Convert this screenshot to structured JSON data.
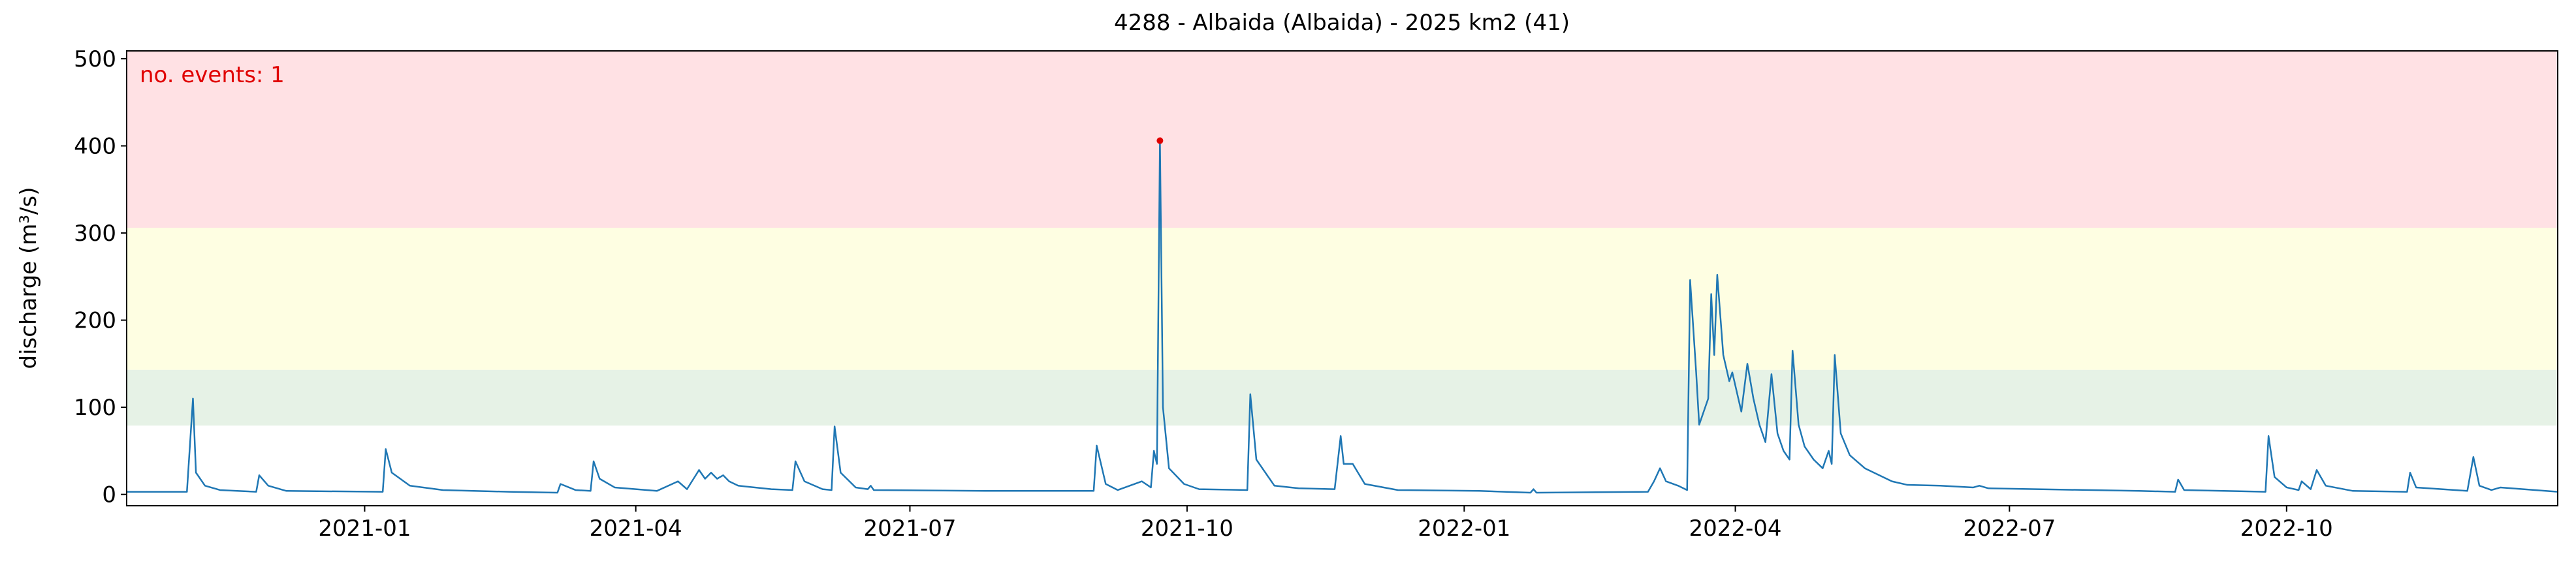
{
  "chart_data": {
    "type": "line",
    "title": "4288 - Albaida (Albaida) - 2025 km2 (41)",
    "y_label": "discharge (m³/s)",
    "annotation": "no. events: 1",
    "annotation_color": "#e00000",
    "xlim": [
      "2020-10-14",
      "2022-12-30"
    ],
    "ylim": [
      -13,
      509
    ],
    "yticks": [
      0,
      100,
      200,
      300,
      400,
      500
    ],
    "xticks": [
      "2021-01",
      "2021-04",
      "2021-07",
      "2021-10",
      "2022-01",
      "2022-04",
      "2022-07",
      "2022-10"
    ],
    "bands": [
      {
        "from": 79,
        "to": 143,
        "color": "#e6f2e6"
      },
      {
        "from": 143,
        "to": 306,
        "color": "#fefee2"
      },
      {
        "from": 306,
        "to": 509,
        "color": "#ffe1e4"
      }
    ],
    "series": [
      {
        "color": "#1f77b4",
        "x": [
          "2020-10-14",
          "2020-11-03",
          "2020-11-05",
          "2020-11-06",
          "2020-11-09",
          "2020-11-14",
          "2020-11-26",
          "2020-11-27",
          "2020-11-30",
          "2020-12-06",
          "2021-01-07",
          "2021-01-08",
          "2021-01-10",
          "2021-01-16",
          "2021-01-27",
          "2021-02-18",
          "2021-03-06",
          "2021-03-07",
          "2021-03-12",
          "2021-03-17",
          "2021-03-18",
          "2021-03-20",
          "2021-03-25",
          "2021-04-08",
          "2021-04-15",
          "2021-04-18",
          "2021-04-22",
          "2021-04-24",
          "2021-04-26",
          "2021-04-28",
          "2021-04-30",
          "2021-05-02",
          "2021-05-05",
          "2021-05-16",
          "2021-05-23",
          "2021-05-24",
          "2021-05-27",
          "2021-06-02",
          "2021-06-05",
          "2021-06-06",
          "2021-06-08",
          "2021-06-13",
          "2021-06-17",
          "2021-06-18",
          "2021-06-19",
          "2021-07-26",
          "2021-08-31",
          "2021-09-01",
          "2021-09-04",
          "2021-09-08",
          "2021-09-16",
          "2021-09-19",
          "2021-09-20",
          "2021-09-21",
          "2021-09-22",
          "2021-09-23",
          "2021-09-25",
          "2021-09-30",
          "2021-10-05",
          "2021-10-21",
          "2021-10-22",
          "2021-10-24",
          "2021-10-30",
          "2021-11-07",
          "2021-11-19",
          "2021-11-21",
          "2021-11-22",
          "2021-11-25",
          "2021-11-29",
          "2021-12-10",
          "2022-01-06",
          "2022-01-23",
          "2022-01-24",
          "2022-01-25",
          "2022-03-03",
          "2022-03-05",
          "2022-03-07",
          "2022-03-09",
          "2022-03-13",
          "2022-03-16",
          "2022-03-17",
          "2022-03-19",
          "2022-03-20",
          "2022-03-23",
          "2022-03-24",
          "2022-03-25",
          "2022-03-26",
          "2022-03-28",
          "2022-03-30",
          "2022-03-31",
          "2022-04-02",
          "2022-04-03",
          "2022-04-05",
          "2022-04-07",
          "2022-04-09",
          "2022-04-11",
          "2022-04-13",
          "2022-04-15",
          "2022-04-17",
          "2022-04-19",
          "2022-04-20",
          "2022-04-22",
          "2022-04-24",
          "2022-04-27",
          "2022-04-30",
          "2022-05-02",
          "2022-05-03",
          "2022-05-04",
          "2022-05-06",
          "2022-05-09",
          "2022-05-14",
          "2022-05-23",
          "2022-05-28",
          "2022-06-08",
          "2022-06-19",
          "2022-06-21",
          "2022-06-24",
          "2022-08-13",
          "2022-08-25",
          "2022-08-26",
          "2022-08-28",
          "2022-09-24",
          "2022-09-25",
          "2022-09-27",
          "2022-10-01",
          "2022-10-05",
          "2022-10-06",
          "2022-10-09",
          "2022-10-11",
          "2022-10-14",
          "2022-10-23",
          "2022-11-10",
          "2022-11-11",
          "2022-11-13",
          "2022-11-30",
          "2022-12-02",
          "2022-12-04",
          "2022-12-08",
          "2022-12-11",
          "2022-12-30"
        ],
        "values": [
          3,
          3,
          110,
          25,
          10,
          5,
          3,
          22,
          10,
          4,
          3,
          52,
          25,
          10,
          5,
          3,
          2,
          12,
          5,
          4,
          38,
          18,
          8,
          4,
          15,
          6,
          28,
          18,
          25,
          18,
          22,
          15,
          10,
          6,
          5,
          38,
          15,
          6,
          5,
          78,
          25,
          8,
          6,
          10,
          5,
          4,
          4,
          56,
          12,
          5,
          15,
          8,
          50,
          35,
          406,
          100,
          30,
          12,
          6,
          5,
          115,
          40,
          10,
          7,
          6,
          67,
          35,
          35,
          12,
          5,
          4,
          2,
          6,
          2,
          3,
          15,
          30,
          15,
          10,
          5,
          246,
          140,
          80,
          110,
          230,
          160,
          252,
          160,
          130,
          140,
          110,
          95,
          150,
          110,
          80,
          60,
          138,
          70,
          50,
          40,
          165,
          80,
          55,
          40,
          30,
          50,
          35,
          160,
          70,
          45,
          30,
          15,
          11,
          10,
          8,
          10,
          7,
          4,
          3,
          17,
          5,
          3,
          67,
          20,
          8,
          5,
          15,
          6,
          28,
          10,
          4,
          3,
          25,
          8,
          4,
          43,
          10,
          5,
          8,
          3
        ]
      }
    ],
    "events": {
      "x": [
        "2021-09-22"
      ],
      "values": [
        406
      ],
      "color": "#e00000"
    }
  }
}
